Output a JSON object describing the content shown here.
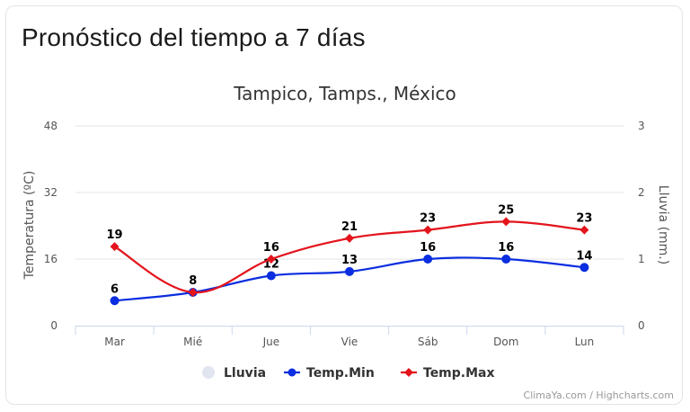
{
  "page": {
    "title": "Pronóstico del tiempo a 7 días"
  },
  "chart_data": {
    "type": "line",
    "title": "Tampico, Tamps., México",
    "categories": [
      "Mar",
      "Mié",
      "Jue",
      "Vie",
      "Sáb",
      "Dom",
      "Lun"
    ],
    "y_left": {
      "label": "Temperatura (ºC)",
      "ticks": [
        "0",
        "16",
        "32",
        "48"
      ],
      "range": [
        0,
        48
      ]
    },
    "y_right": {
      "label": "Lluvia (mm.)",
      "ticks": [
        "0",
        "1",
        "2",
        "3"
      ],
      "range": [
        0,
        3
      ]
    },
    "series": [
      {
        "name": "Lluvia",
        "type": "column",
        "axis": "right",
        "values": [
          0,
          0,
          0,
          0,
          0,
          0,
          0
        ],
        "color": "#e1e5f0"
      },
      {
        "name": "Temp.Min",
        "type": "spline",
        "axis": "left",
        "values": [
          6,
          8,
          12,
          13,
          16,
          16,
          14
        ],
        "labels": [
          "6",
          "",
          "12",
          "13",
          "16",
          "16",
          "14"
        ],
        "color": "#0b2ee0",
        "marker": "circle"
      },
      {
        "name": "Temp.Max",
        "type": "spline",
        "axis": "left",
        "values": [
          19,
          8,
          16,
          21,
          23,
          25,
          23
        ],
        "labels": [
          "19",
          "8",
          "16",
          "21",
          "23",
          "25",
          "23"
        ],
        "color": "#e3141c",
        "marker": "diamond"
      }
    ],
    "legend_position": "bottom-center",
    "grid": true,
    "credits": "ClimaYa.com / Highcharts.com"
  }
}
